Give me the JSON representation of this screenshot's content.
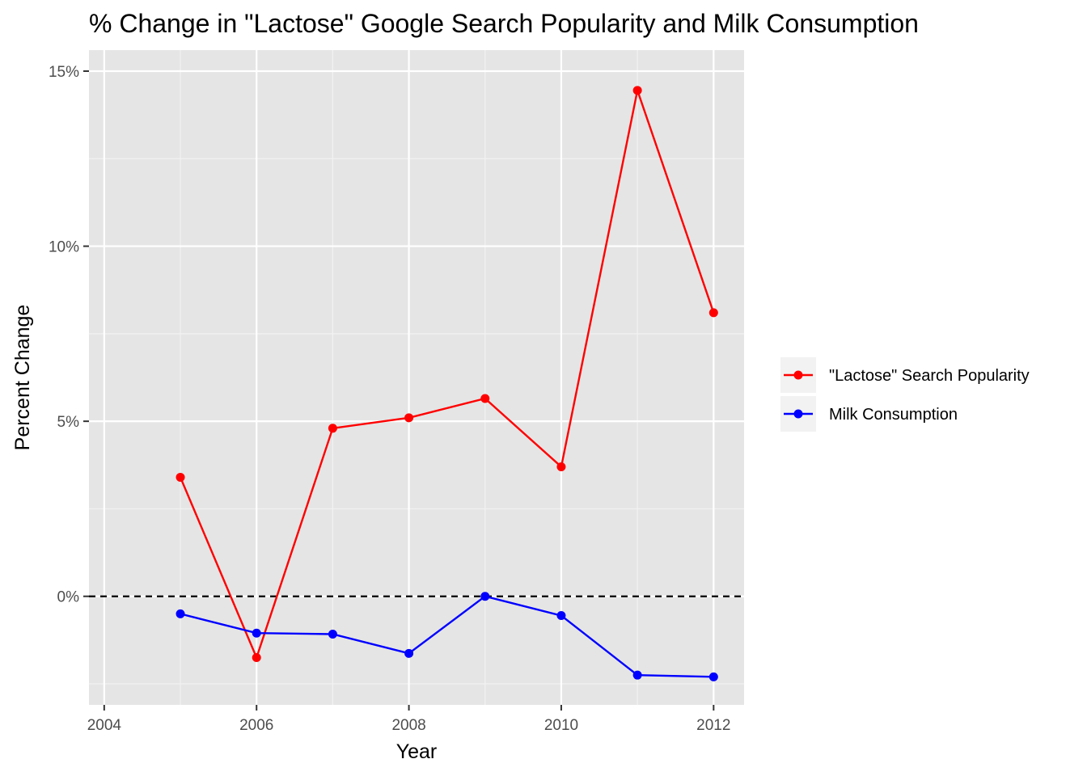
{
  "chart_data": {
    "type": "line",
    "title": "% Change in \"Lactose\" Google Search Popularity and Milk Consumption",
    "xlabel": "Year",
    "ylabel": "Percent Change",
    "xlim": [
      2003.8,
      2012.4
    ],
    "ylim": [
      -3.1,
      15.6
    ],
    "x_ticks": [
      2004,
      2006,
      2008,
      2010,
      2012
    ],
    "x_tick_labels": [
      "2004",
      "2006",
      "2008",
      "2010",
      "2012"
    ],
    "y_ticks": [
      0,
      5,
      10,
      15
    ],
    "y_tick_labels": [
      "0%",
      "5%",
      "10%",
      "15%"
    ],
    "grid": true,
    "reference_line": {
      "y": 0,
      "style": "dashed",
      "color": "#000000"
    },
    "legend_position": "right",
    "series": [
      {
        "name": "\"Lactose\" Search Popularity",
        "color": "#ff0000",
        "x": [
          2005,
          2006,
          2007,
          2008,
          2009,
          2010,
          2011,
          2012
        ],
        "y": [
          3.4,
          -1.75,
          4.8,
          5.1,
          5.65,
          3.7,
          14.45,
          8.1
        ]
      },
      {
        "name": "Milk Consumption",
        "color": "#0000ff",
        "x": [
          2005,
          2006,
          2007,
          2008,
          2009,
          2010,
          2011,
          2012
        ],
        "y": [
          -0.5,
          -1.05,
          -1.08,
          -1.63,
          0.0,
          -0.55,
          -2.25,
          -2.3
        ]
      }
    ]
  }
}
